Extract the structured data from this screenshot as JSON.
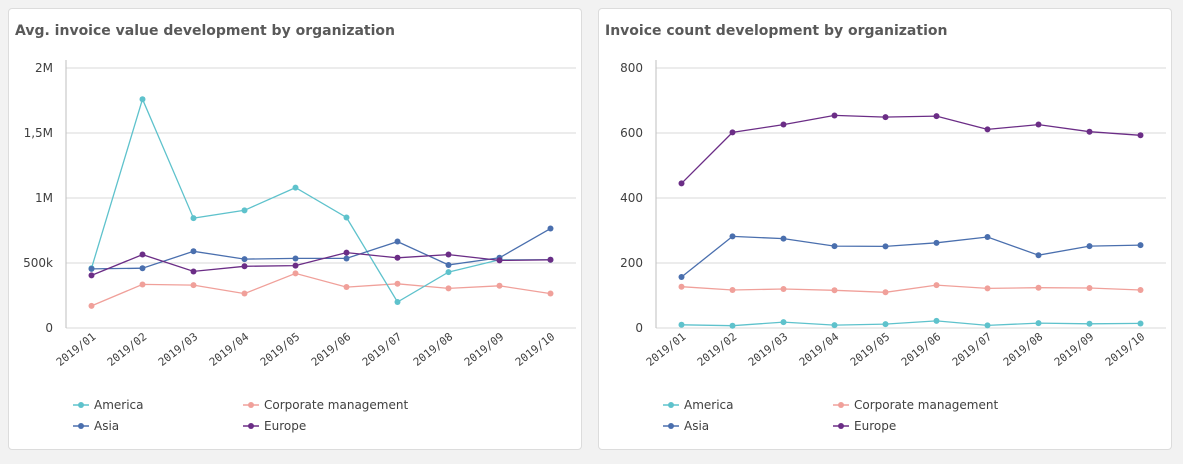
{
  "colors": {
    "America": "#5ec2cc",
    "Asia": "#4a6fae",
    "Corporate management": "#f0a09a",
    "Europe": "#6b2d86"
  },
  "charts": [
    {
      "title": "Avg. invoice value development by organization",
      "chart_data": {
        "type": "line",
        "x": [
          "2019/01",
          "2019/02",
          "2019/03",
          "2019/04",
          "2019/05",
          "2019/06",
          "2019/07",
          "2019/08",
          "2019/09",
          "2019/10"
        ],
        "ylim": [
          0,
          2000000
        ],
        "yticks": [
          0,
          500000,
          1000000,
          1500000,
          2000000
        ],
        "ytick_labels": [
          "0",
          "500k",
          "1M",
          "1,5M",
          "2M"
        ],
        "grid": true,
        "legend": "bottom",
        "series": [
          {
            "name": "America",
            "values": [
              460000,
              1760000,
              845000,
              905000,
              1080000,
              850000,
              200000,
              430000,
              525000,
              525000
            ]
          },
          {
            "name": "Corporate management",
            "values": [
              170000,
              335000,
              330000,
              265000,
              420000,
              315000,
              340000,
              305000,
              325000,
              265000
            ]
          },
          {
            "name": "Asia",
            "values": [
              455000,
              460000,
              590000,
              530000,
              535000,
              535000,
              665000,
              485000,
              540000,
              765000
            ]
          },
          {
            "name": "Europe",
            "values": [
              405000,
              565000,
              435000,
              475000,
              480000,
              580000,
              540000,
              565000,
              520000,
              525000
            ]
          }
        ]
      }
    },
    {
      "title": "Invoice count development by organization",
      "chart_data": {
        "type": "line",
        "x": [
          "2019/01",
          "2019/02",
          "2019/03",
          "2019/04",
          "2019/05",
          "2019/06",
          "2019/07",
          "2019/08",
          "2019/09",
          "2019/10"
        ],
        "ylim": [
          0,
          800
        ],
        "yticks": [
          0,
          200,
          400,
          600,
          800
        ],
        "ytick_labels": [
          "0",
          "200",
          "400",
          "600",
          "800"
        ],
        "grid": true,
        "legend": "bottom",
        "series": [
          {
            "name": "America",
            "values": [
              10,
              7,
              18,
              9,
              12,
              22,
              8,
              15,
              13,
              14
            ]
          },
          {
            "name": "Corporate management",
            "values": [
              127,
              117,
              120,
              116,
              110,
              132,
              122,
              124,
              123,
              117
            ]
          },
          {
            "name": "Asia",
            "values": [
              157,
              282,
              275,
              252,
              251,
              262,
              280,
              224,
              252,
              255
            ]
          },
          {
            "name": "Europe",
            "values": [
              445,
              602,
              626,
              654,
              649,
              652,
              611,
              626,
              604,
              593
            ]
          }
        ]
      }
    }
  ]
}
